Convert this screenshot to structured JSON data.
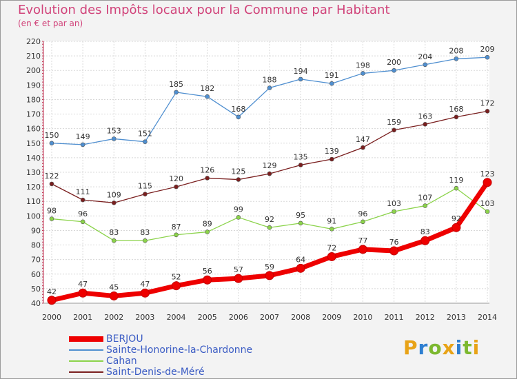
{
  "header": {
    "title": "Evolution des Impôts locaux pour la Commune par Habitant",
    "subtitle": "(en € et par an)"
  },
  "logo": {
    "text": "Proxiti",
    "letters": [
      "P",
      "r",
      "o",
      "x",
      "i",
      "t",
      "i"
    ],
    "colors": [
      "#e8a317",
      "#2e7fd1",
      "#7cb82f",
      "#e8a317",
      "#2e7fd1",
      "#7cb82f",
      "#e8a317"
    ]
  },
  "chart_data": {
    "type": "line",
    "title": "Evolution des Impôts locaux pour la Commune par Habitant",
    "subtitle": "(en € et par an)",
    "xlabel": "",
    "ylabel": "",
    "ylim": [
      40,
      220
    ],
    "yticks": [
      40,
      50,
      60,
      70,
      80,
      90,
      100,
      110,
      120,
      130,
      140,
      150,
      160,
      170,
      180,
      190,
      200,
      210,
      220
    ],
    "grid": true,
    "legend_position": "bottom-left",
    "x": [
      "2000",
      "2001",
      "2002",
      "2003",
      "2004",
      "2005",
      "2006",
      "2007",
      "2008",
      "2009",
      "2010",
      "2011",
      "2012",
      "2013",
      "2014"
    ],
    "series": [
      {
        "name": "BERJOU",
        "color": "#ee0000",
        "emphasis": true,
        "values": [
          42,
          47,
          45,
          47,
          52,
          56,
          57,
          59,
          64,
          72,
          77,
          76,
          83,
          92,
          123
        ]
      },
      {
        "name": "Sainte-Honorine-la-Chardonne",
        "color": "#4f8fd0",
        "emphasis": false,
        "values": [
          150,
          149,
          153,
          151,
          185,
          182,
          168,
          188,
          194,
          191,
          198,
          200,
          204,
          208,
          209
        ]
      },
      {
        "name": "Cahan",
        "color": "#8bd34a",
        "emphasis": false,
        "values": [
          98,
          96,
          83,
          83,
          87,
          89,
          99,
          92,
          95,
          91,
          96,
          103,
          107,
          119,
          103
        ]
      },
      {
        "name": "Saint-Denis-de-Méré",
        "color": "#7a1f1f",
        "emphasis": false,
        "values": [
          122,
          111,
          109,
          115,
          120,
          126,
          125,
          129,
          135,
          139,
          147,
          159,
          163,
          168,
          172
        ]
      }
    ]
  }
}
